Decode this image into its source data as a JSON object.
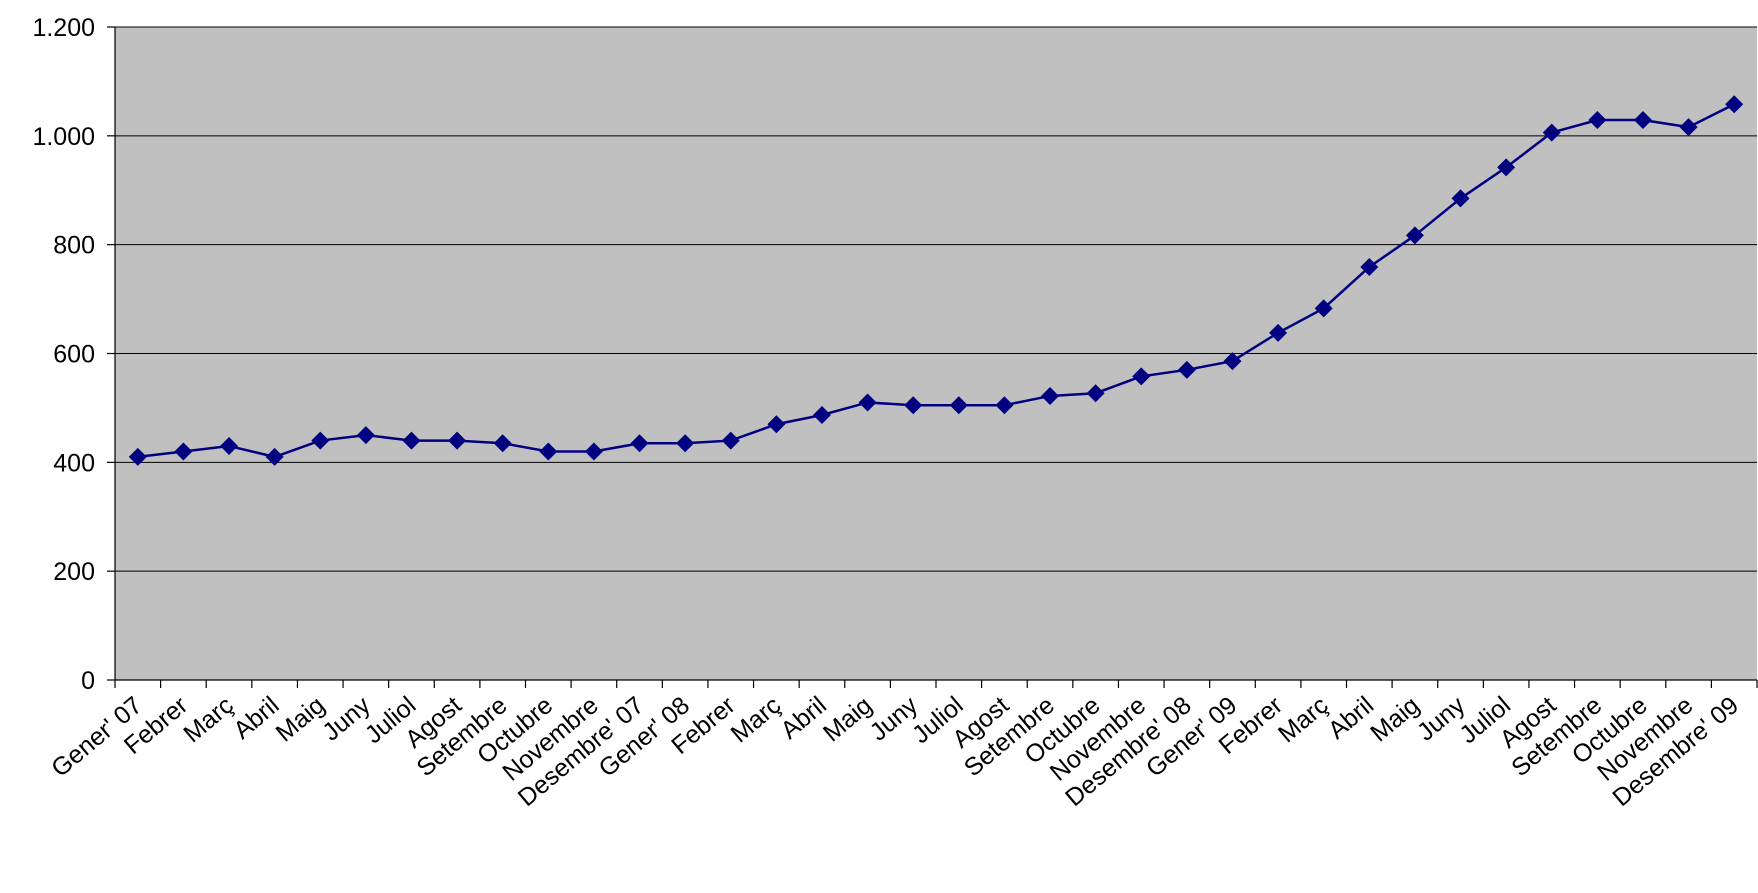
{
  "chart_data": {
    "type": "line",
    "categories": [
      "Gener' 07",
      "Febrer",
      "Març",
      "Abril",
      "Maig",
      "Juny",
      "Juliol",
      "Agost",
      "Setembre",
      "Octubre",
      "Novembre",
      "Desembre' 07",
      "Gener' 08",
      "Febrer",
      "Març",
      "Abril",
      "Maig",
      "Juny",
      "Juliol",
      "Agost",
      "Setembre",
      "Octubre",
      "Novembre",
      "Desembre' 08",
      "Gener' 09",
      "Febrer",
      "Març",
      "Abril",
      "Maig",
      "Juny",
      "Juliol",
      "Agost",
      "Setembre",
      "Octubre",
      "Novembre",
      "Desembre' 09"
    ],
    "values": [
      410,
      420,
      430,
      410,
      440,
      450,
      440,
      440,
      435,
      420,
      420,
      435,
      435,
      440,
      470,
      487,
      510,
      505,
      505,
      505,
      522,
      527,
      558,
      570,
      586,
      638,
      683,
      759,
      817,
      885,
      942,
      1006,
      1029,
      1029,
      1016,
      1058
    ],
    "color": "#000080",
    "ylim": [
      0,
      1200
    ],
    "yticks": [
      0,
      200,
      400,
      600,
      800,
      {
        "value": 1000,
        "label": "1.000"
      },
      {
        "value": 1200,
        "label": "1.200"
      }
    ],
    "grid": true
  }
}
